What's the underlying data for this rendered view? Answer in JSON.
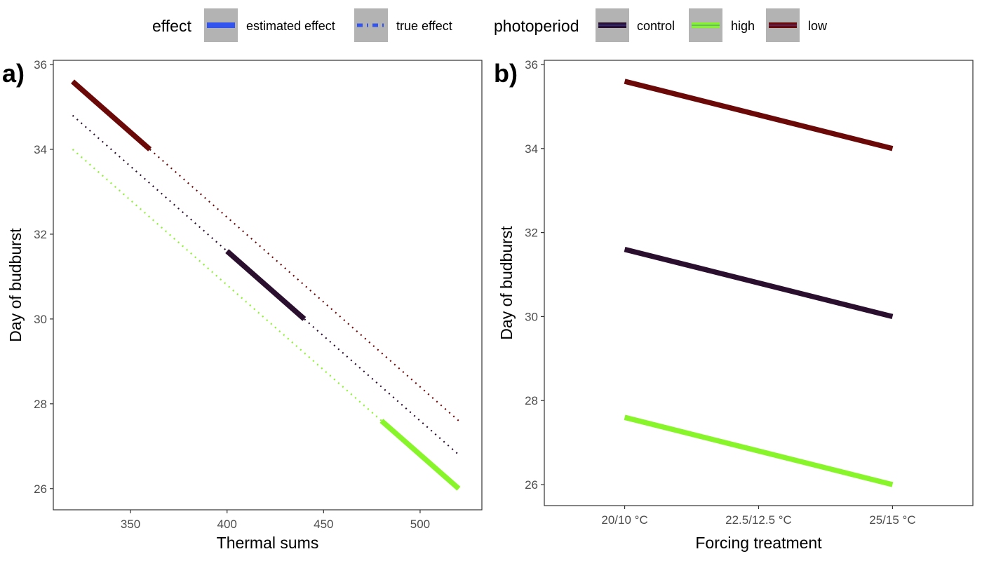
{
  "legend": {
    "effect": {
      "title": "effect",
      "items": [
        {
          "label": "estimated effect",
          "style": "solid"
        },
        {
          "label": "true effect",
          "style": "dotted"
        }
      ],
      "color": "#3355ee"
    },
    "photoperiod": {
      "title": "photoperiod",
      "items": [
        {
          "label": "control",
          "color": "#2a0f2e"
        },
        {
          "label": "high",
          "color": "#88f52a"
        },
        {
          "label": "low",
          "color": "#6b0808"
        }
      ]
    }
  },
  "chart_data": [
    {
      "type": "line",
      "panel_label": "a)",
      "xlabel": "Thermal sums",
      "ylabel": "Day of budburst",
      "xlim": [
        310,
        532
      ],
      "ylim": [
        25.5,
        36.1
      ],
      "x_ticks": [
        350,
        400,
        450,
        500
      ],
      "y_ticks": [
        26,
        28,
        30,
        32,
        34,
        36
      ],
      "grid": false,
      "series": [
        {
          "group": "low",
          "effect": "estimated effect",
          "color": "#6b0808",
          "x": [
            320,
            360
          ],
          "y": [
            35.6,
            34.0
          ]
        },
        {
          "group": "control",
          "effect": "estimated effect",
          "color": "#2a0f2e",
          "x": [
            400,
            440
          ],
          "y": [
            31.6,
            30.0
          ]
        },
        {
          "group": "high",
          "effect": "estimated effect",
          "color": "#88f52a",
          "x": [
            480,
            520
          ],
          "y": [
            27.6,
            26.0
          ]
        },
        {
          "group": "low",
          "effect": "true effect",
          "color": "#6b0808",
          "x": [
            360,
            520
          ],
          "y": [
            34.0,
            27.6
          ]
        },
        {
          "group": "control",
          "effect": "true effect",
          "color": "#2a0f2e",
          "x": [
            320,
            520
          ],
          "y": [
            34.8,
            26.8
          ]
        },
        {
          "group": "high",
          "effect": "true effect",
          "color": "#88f52a",
          "x": [
            320,
            480
          ],
          "y": [
            34.0,
            27.6
          ]
        }
      ]
    },
    {
      "type": "line",
      "panel_label": "b)",
      "xlabel": "Forcing treatment",
      "ylabel": "Day of budburst",
      "categories": [
        "20/10 °C",
        "22.5/12.5 °C",
        "25/15 °C"
      ],
      "ylim": [
        25.5,
        36.1
      ],
      "y_ticks": [
        26,
        28,
        30,
        32,
        34,
        36
      ],
      "grid": false,
      "series": [
        {
          "group": "low",
          "color": "#6b0808",
          "values": [
            35.6,
            34.8,
            34.0
          ]
        },
        {
          "group": "control",
          "color": "#2a0f2e",
          "values": [
            31.6,
            30.8,
            30.0
          ]
        },
        {
          "group": "high",
          "color": "#88f52a",
          "values": [
            27.6,
            26.8,
            26.0
          ]
        }
      ]
    }
  ]
}
